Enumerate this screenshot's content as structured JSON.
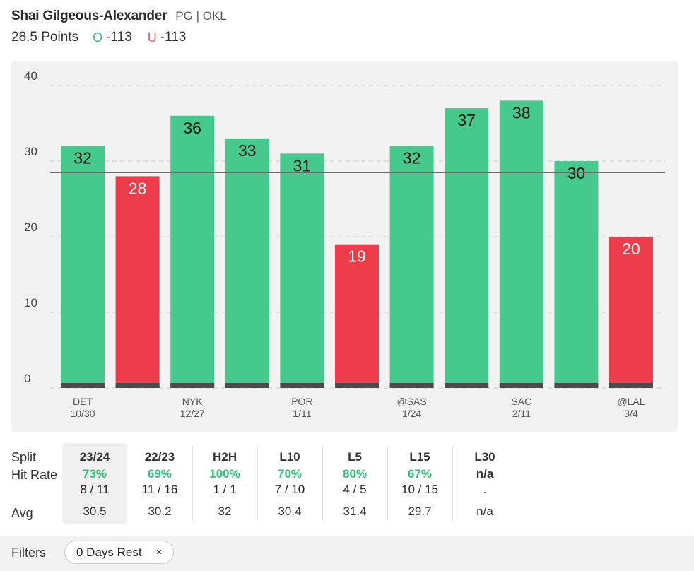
{
  "player": {
    "name": "Shai Gilgeous-Alexander",
    "meta": "PG | OKL"
  },
  "prop": {
    "line_label": "28.5 Points",
    "over_letter": "O",
    "over_odds": "-113",
    "under_letter": "U",
    "under_odds": "-113"
  },
  "colors": {
    "over": "#45c98c",
    "under": "#ee3d4a",
    "line": "#6b6b6b",
    "base": "#4a4a4a",
    "panel": "#f2f2f2"
  },
  "chart_data": {
    "type": "bar",
    "ylim": [
      0,
      40
    ],
    "yticks": [
      0,
      10,
      20,
      30,
      40
    ],
    "threshold": 28.5,
    "grid": true,
    "values": [
      32,
      28,
      36,
      33,
      31,
      19,
      32,
      37,
      38,
      30,
      20
    ],
    "outcomes": [
      "over",
      "under",
      "over",
      "over",
      "over",
      "under",
      "over",
      "over",
      "over",
      "over",
      "under"
    ],
    "labels": [
      {
        "opp": "DET",
        "date": "10/30"
      },
      {
        "opp": "",
        "date": ""
      },
      {
        "opp": "NYK",
        "date": "12/27"
      },
      {
        "opp": "",
        "date": ""
      },
      {
        "opp": "POR",
        "date": "1/11"
      },
      {
        "opp": "",
        "date": ""
      },
      {
        "opp": "@SAS",
        "date": "1/24"
      },
      {
        "opp": "",
        "date": ""
      },
      {
        "opp": "SAC",
        "date": "2/11"
      },
      {
        "opp": "",
        "date": ""
      },
      {
        "opp": "@LAL",
        "date": "3/4"
      }
    ]
  },
  "splits": {
    "row_labels": {
      "split": "Split",
      "hit_rate": "Hit Rate",
      "avg": "Avg"
    },
    "columns": [
      {
        "name": "23/24",
        "rate": "73%",
        "frac": "8 / 11",
        "avg": "30.5",
        "active": true
      },
      {
        "name": "22/23",
        "rate": "69%",
        "frac": "11 / 16",
        "avg": "30.2",
        "active": false
      },
      {
        "name": "H2H",
        "rate": "100%",
        "frac": "1 / 1",
        "avg": "32",
        "active": false
      },
      {
        "name": "L10",
        "rate": "70%",
        "frac": "7 / 10",
        "avg": "30.4",
        "active": false
      },
      {
        "name": "L5",
        "rate": "80%",
        "frac": "4 / 5",
        "avg": "31.4",
        "active": false
      },
      {
        "name": "L15",
        "rate": "67%",
        "frac": "10 / 15",
        "avg": "29.7",
        "active": false
      },
      {
        "name": "L30",
        "rate": "n/a",
        "frac": ".",
        "avg": "n/a",
        "active": false
      }
    ]
  },
  "filters": {
    "label": "Filters",
    "chips": [
      {
        "label": "0 Days Rest",
        "close": "×"
      }
    ]
  }
}
